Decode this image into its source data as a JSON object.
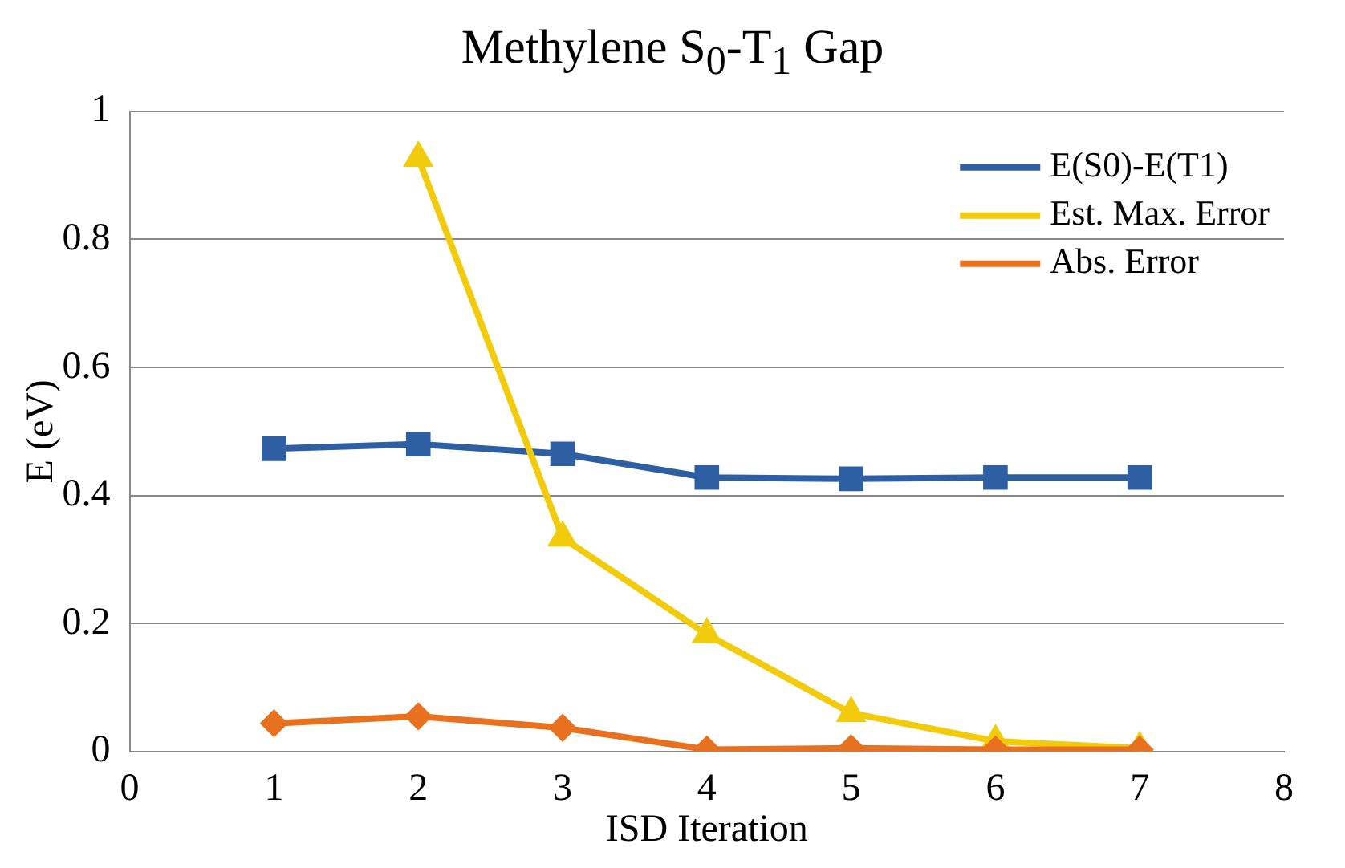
{
  "chart_data": {
    "type": "line",
    "title": "Methylene S$_{0}$-T$_{1}$ Gap",
    "xlabel": "ISD Iteration",
    "ylabel": "E (eV)",
    "xlim": [
      0,
      8
    ],
    "xticks": [
      0,
      1,
      2,
      3,
      4,
      5,
      6,
      7,
      8
    ],
    "ylim": [
      0,
      1
    ],
    "yticks": [
      0,
      0.2,
      0.4,
      0.6,
      0.8,
      1
    ],
    "grid": "y",
    "legend": "top right",
    "series": [
      {
        "name": "E(S0)-E(T1)",
        "color": "#2e5fa3",
        "marker": "square",
        "x": [
          1,
          2,
          3,
          4,
          5,
          6,
          7
        ],
        "values": [
          0.473,
          0.48,
          0.465,
          0.428,
          0.426,
          0.428,
          0.428
        ]
      },
      {
        "name": "Est. Max. Error",
        "color": "#f2cc0c",
        "marker": "triangle",
        "x": [
          2,
          3,
          4,
          5,
          6,
          7
        ],
        "values": [
          0.927,
          0.334,
          0.183,
          0.06,
          0.016,
          0.005
        ]
      },
      {
        "name": "Abs. Error",
        "color": "#e8711f",
        "marker": "diamond",
        "x": [
          1,
          2,
          3,
          4,
          5,
          6,
          7
        ],
        "values": [
          0.044,
          0.055,
          0.037,
          0.003,
          0.005,
          0.003,
          0.003
        ]
      }
    ]
  }
}
